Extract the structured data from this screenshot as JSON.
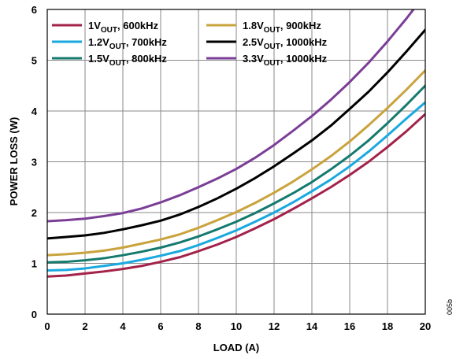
{
  "chart_data": {
    "type": "line",
    "xlabel": "LOAD (A)",
    "ylabel": "POWER LOSS (W)",
    "xlim": [
      0,
      20
    ],
    "ylim": [
      0,
      6
    ],
    "x_ticks": [
      0,
      2,
      4,
      6,
      8,
      10,
      12,
      14,
      16,
      18,
      20
    ],
    "y_ticks": [
      0,
      1,
      2,
      3,
      4,
      5,
      6
    ],
    "grid": true,
    "legend_position": "top-left",
    "figure_id": "005b",
    "x": [
      0,
      1,
      2,
      3,
      4,
      5,
      6,
      7,
      8,
      9,
      10,
      11,
      12,
      13,
      14,
      15,
      16,
      17,
      18,
      19,
      20
    ],
    "series": [
      {
        "name_main": "1V",
        "name_sub": "OUT",
        "name_rest": ", 600kHz",
        "color": "#a3224a",
        "values": [
          0.74,
          0.76,
          0.8,
          0.84,
          0.89,
          0.95,
          1.03,
          1.12,
          1.24,
          1.37,
          1.52,
          1.69,
          1.87,
          2.07,
          2.28,
          2.5,
          2.74,
          3.0,
          3.29,
          3.6,
          3.94
        ]
      },
      {
        "name_main": "1.2V",
        "name_sub": "OUT",
        "name_rest": ", 700kHz",
        "color": "#1aa9df",
        "values": [
          0.86,
          0.87,
          0.9,
          0.95,
          1.0,
          1.07,
          1.15,
          1.24,
          1.36,
          1.5,
          1.65,
          1.82,
          2.0,
          2.2,
          2.42,
          2.65,
          2.91,
          3.2,
          3.52,
          3.85,
          4.17
        ]
      },
      {
        "name_main": "1.5V",
        "name_sub": "OUT",
        "name_rest": ", 800kHz",
        "color": "#157a6e",
        "values": [
          1.02,
          1.03,
          1.06,
          1.1,
          1.16,
          1.23,
          1.31,
          1.41,
          1.53,
          1.67,
          1.82,
          1.99,
          2.18,
          2.38,
          2.6,
          2.85,
          3.12,
          3.42,
          3.76,
          4.12,
          4.5
        ]
      },
      {
        "name_main": "1.8V",
        "name_sub": "OUT",
        "name_rest": ", 900kHz",
        "color": "#c9a33c",
        "values": [
          1.16,
          1.18,
          1.21,
          1.25,
          1.31,
          1.39,
          1.47,
          1.57,
          1.7,
          1.85,
          2.01,
          2.19,
          2.39,
          2.61,
          2.85,
          3.11,
          3.4,
          3.72,
          4.06,
          4.42,
          4.8
        ]
      },
      {
        "name_main": "2.5V",
        "name_sub": "OUT",
        "name_rest": ", 1000kHz",
        "color": "#000000",
        "values": [
          1.49,
          1.52,
          1.55,
          1.6,
          1.67,
          1.75,
          1.84,
          1.96,
          2.11,
          2.28,
          2.47,
          2.68,
          2.91,
          3.16,
          3.42,
          3.71,
          4.04,
          4.38,
          4.76,
          5.17,
          5.6
        ]
      },
      {
        "name_main": "3.3V",
        "name_sub": "OUT",
        "name_rest": ", 1000kHz",
        "color": "#7b3e96",
        "values": [
          1.83,
          1.85,
          1.88,
          1.93,
          1.99,
          2.08,
          2.2,
          2.34,
          2.5,
          2.67,
          2.86,
          3.08,
          3.33,
          3.61,
          3.9,
          4.22,
          4.57,
          4.95,
          5.37,
          5.82,
          6.3
        ]
      }
    ]
  }
}
